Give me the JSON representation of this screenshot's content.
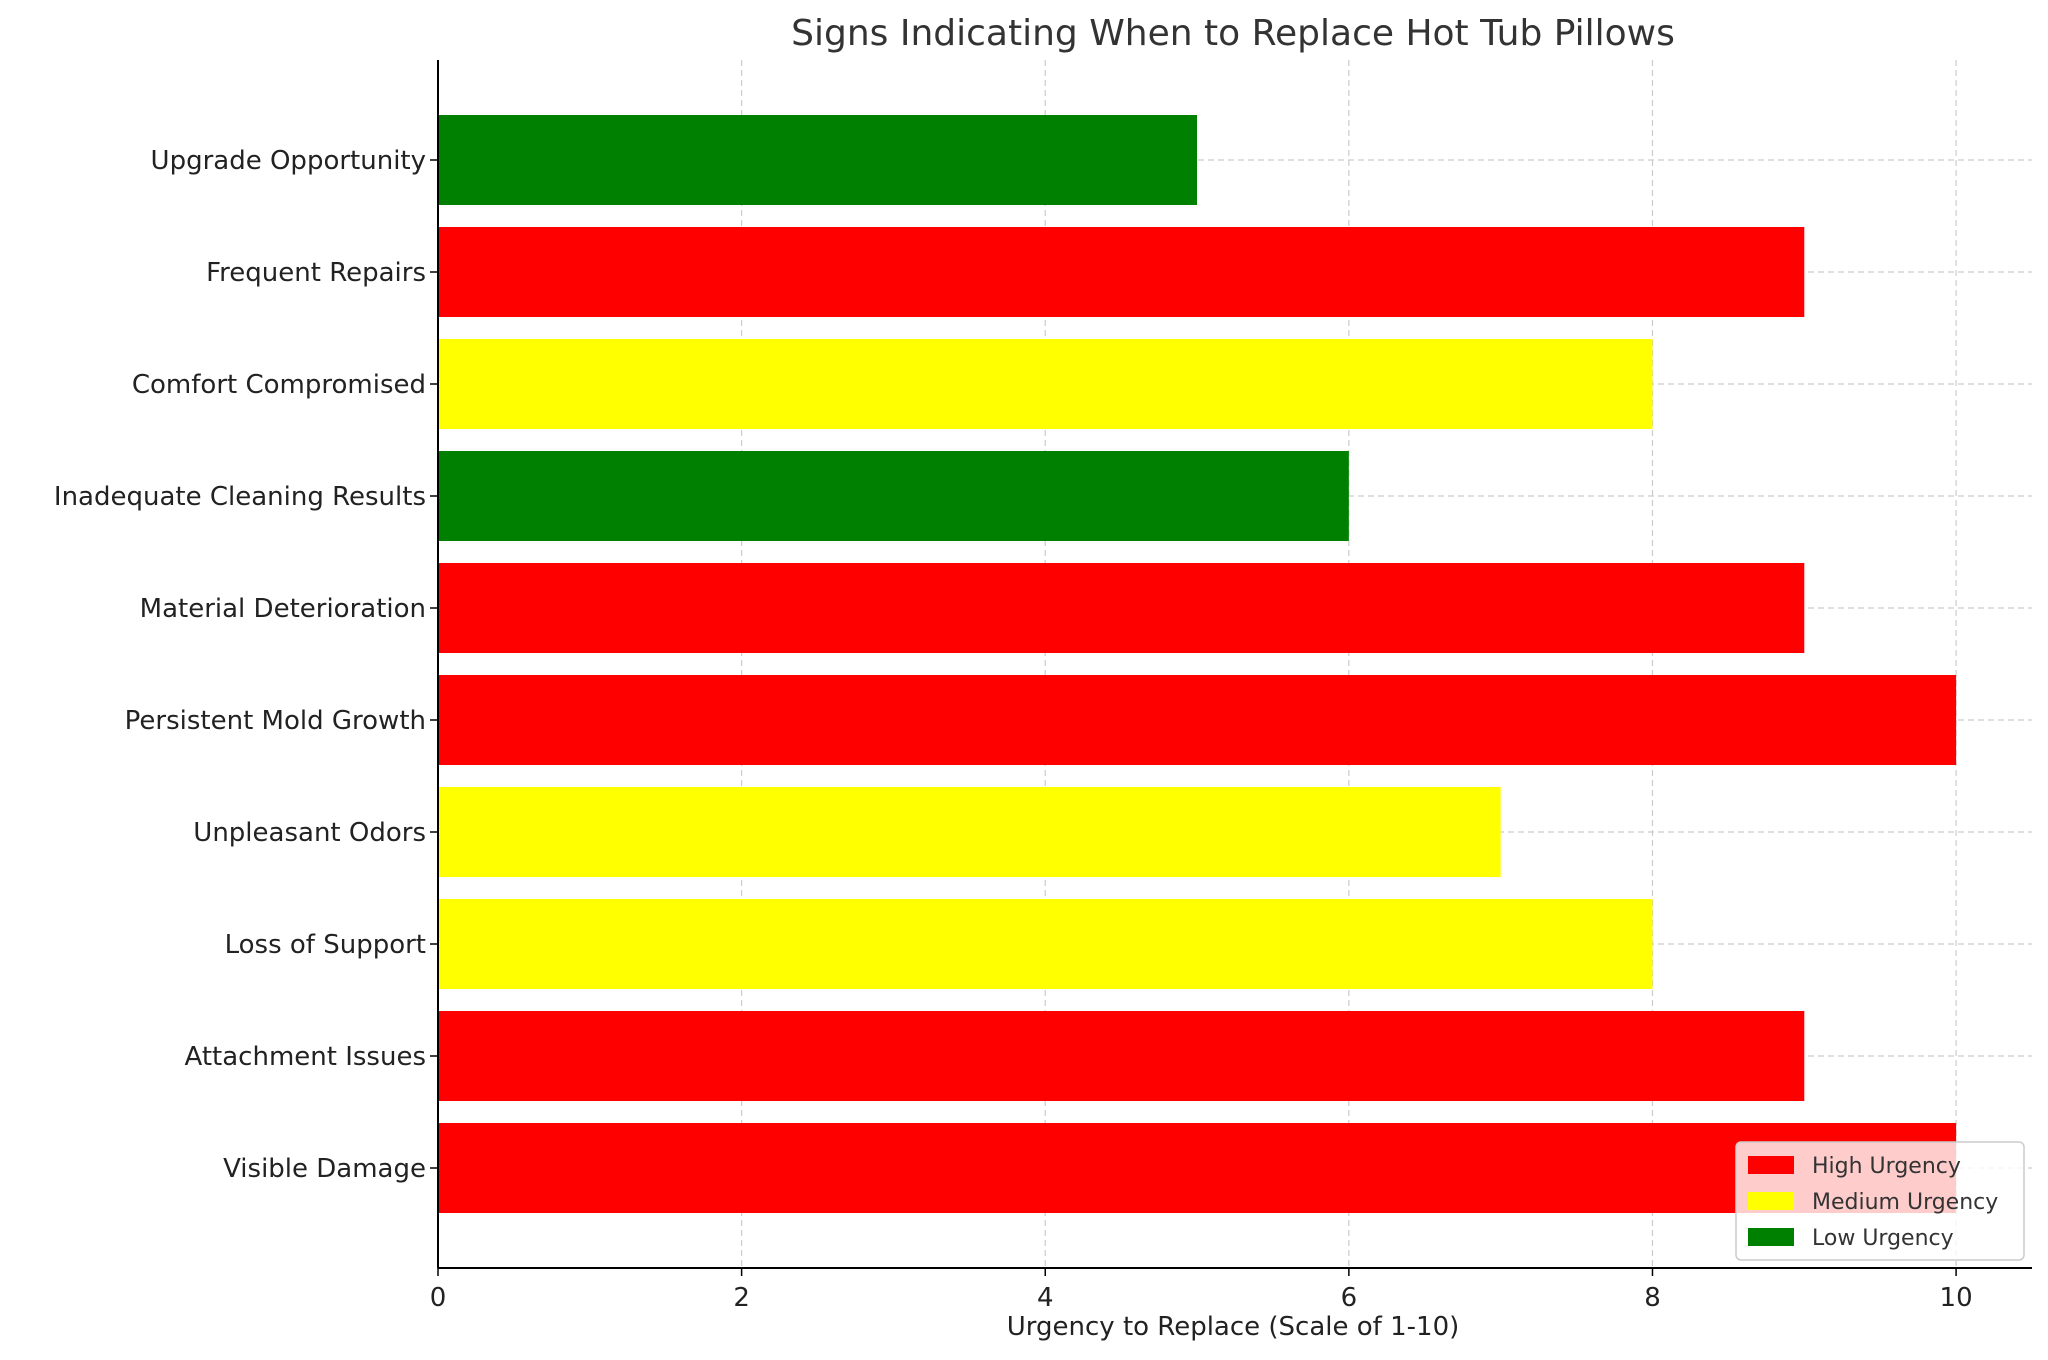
{
  "chart_data": {
    "type": "bar",
    "orientation": "horizontal",
    "title": "Signs Indicating When to Replace Hot Tub Pillows",
    "xlabel": "Urgency to Replace (Scale of 1-10)",
    "ylabel": "",
    "xlim": [
      0,
      10.5
    ],
    "xticks": [
      "0",
      "2",
      "4",
      "6",
      "8",
      "10"
    ],
    "grid": true,
    "legend_position": "lower-right",
    "categories": [
      "Visible Damage",
      "Attachment Issues",
      "Loss of Support",
      "Unpleasant Odors",
      "Persistent Mold Growth",
      "Material Deterioration",
      "Inadequate Cleaning Results",
      "Comfort Compromised",
      "Frequent Repairs",
      "Upgrade Opportunity"
    ],
    "values": [
      10,
      9,
      8,
      7,
      10,
      9,
      6,
      8,
      9,
      5
    ],
    "urgency": [
      "high",
      "high",
      "medium",
      "medium",
      "high",
      "high",
      "low",
      "medium",
      "high",
      "low"
    ],
    "legend": [
      {
        "key": "high",
        "label": "High Urgency",
        "color": "#ff0000"
      },
      {
        "key": "medium",
        "label": "Medium Urgency",
        "color": "#ffff00"
      },
      {
        "key": "low",
        "label": "Low Urgency",
        "color": "#008000"
      }
    ]
  }
}
